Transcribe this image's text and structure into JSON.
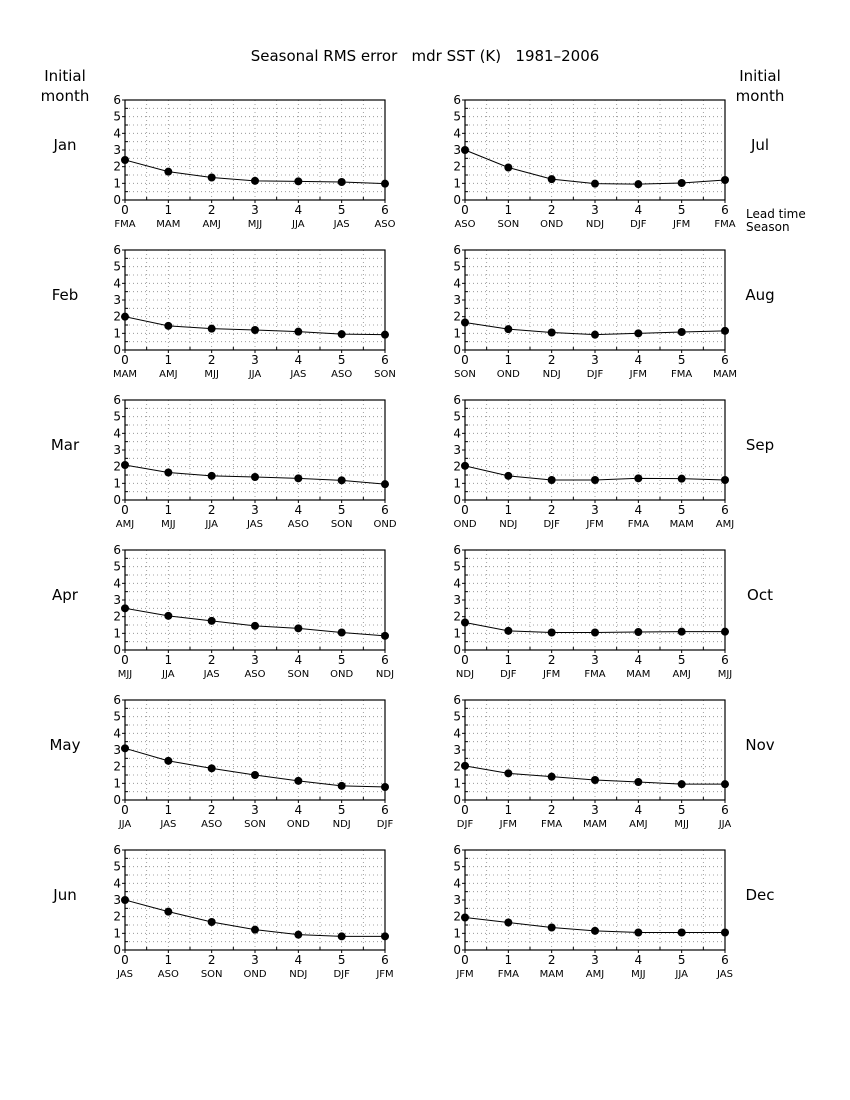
{
  "figure": {
    "title": "Seasonal RMS error   mdr SST (K)   1981–2006",
    "initial_month_label_line1": "Initial",
    "initial_month_label_line2": "month",
    "lead_time_label": "Lead time",
    "season_label": "Season"
  },
  "chart_data": [
    {
      "type": "line",
      "initial_month": "Jan",
      "x": [
        0,
        1,
        2,
        3,
        4,
        5,
        6
      ],
      "seasons": [
        "FMA",
        "MAM",
        "AMJ",
        "MJJ",
        "JJA",
        "JAS",
        "ASO"
      ],
      "values": [
        2.4,
        1.7,
        1.35,
        1.15,
        1.12,
        1.08,
        0.98
      ],
      "ylim": [
        0,
        6
      ],
      "xlim": [
        0,
        6
      ],
      "grid": true
    },
    {
      "type": "line",
      "initial_month": "Jul",
      "x": [
        0,
        1,
        2,
        3,
        4,
        5,
        6
      ],
      "seasons": [
        "ASO",
        "SON",
        "OND",
        "NDJ",
        "DJF",
        "JFM",
        "FMA"
      ],
      "values": [
        3.0,
        1.95,
        1.25,
        0.98,
        0.95,
        1.02,
        1.2
      ],
      "ylim": [
        0,
        6
      ],
      "xlim": [
        0,
        6
      ],
      "grid": true
    },
    {
      "type": "line",
      "initial_month": "Feb",
      "x": [
        0,
        1,
        2,
        3,
        4,
        5,
        6
      ],
      "seasons": [
        "MAM",
        "AMJ",
        "MJJ",
        "JJA",
        "JAS",
        "ASO",
        "SON"
      ],
      "values": [
        2.0,
        1.45,
        1.28,
        1.2,
        1.1,
        0.95,
        0.92
      ],
      "ylim": [
        0,
        6
      ],
      "xlim": [
        0,
        6
      ],
      "grid": true
    },
    {
      "type": "line",
      "initial_month": "Aug",
      "x": [
        0,
        1,
        2,
        3,
        4,
        5,
        6
      ],
      "seasons": [
        "SON",
        "OND",
        "NDJ",
        "DJF",
        "JFM",
        "FMA",
        "MAM"
      ],
      "values": [
        1.65,
        1.25,
        1.05,
        0.92,
        1.0,
        1.08,
        1.15
      ],
      "ylim": [
        0,
        6
      ],
      "xlim": [
        0,
        6
      ],
      "grid": true
    },
    {
      "type": "line",
      "initial_month": "Mar",
      "x": [
        0,
        1,
        2,
        3,
        4,
        5,
        6
      ],
      "seasons": [
        "AMJ",
        "MJJ",
        "JJA",
        "JAS",
        "ASO",
        "SON",
        "OND"
      ],
      "values": [
        2.1,
        1.65,
        1.45,
        1.38,
        1.3,
        1.18,
        0.95
      ],
      "ylim": [
        0,
        6
      ],
      "xlim": [
        0,
        6
      ],
      "grid": true
    },
    {
      "type": "line",
      "initial_month": "Sep",
      "x": [
        0,
        1,
        2,
        3,
        4,
        5,
        6
      ],
      "seasons": [
        "OND",
        "NDJ",
        "DJF",
        "JFM",
        "FMA",
        "MAM",
        "AMJ"
      ],
      "values": [
        2.05,
        1.45,
        1.2,
        1.2,
        1.3,
        1.28,
        1.2
      ],
      "ylim": [
        0,
        6
      ],
      "xlim": [
        0,
        6
      ],
      "grid": true
    },
    {
      "type": "line",
      "initial_month": "Apr",
      "x": [
        0,
        1,
        2,
        3,
        4,
        5,
        6
      ],
      "seasons": [
        "MJJ",
        "JJA",
        "JAS",
        "ASO",
        "SON",
        "OND",
        "NDJ"
      ],
      "values": [
        2.5,
        2.05,
        1.75,
        1.45,
        1.3,
        1.05,
        0.85
      ],
      "ylim": [
        0,
        6
      ],
      "xlim": [
        0,
        6
      ],
      "grid": true
    },
    {
      "type": "line",
      "initial_month": "Oct",
      "x": [
        0,
        1,
        2,
        3,
        4,
        5,
        6
      ],
      "seasons": [
        "NDJ",
        "DJF",
        "JFM",
        "FMA",
        "MAM",
        "AMJ",
        "MJJ"
      ],
      "values": [
        1.65,
        1.15,
        1.05,
        1.05,
        1.08,
        1.1,
        1.1
      ],
      "ylim": [
        0,
        6
      ],
      "xlim": [
        0,
        6
      ],
      "grid": true
    },
    {
      "type": "line",
      "initial_month": "May",
      "x": [
        0,
        1,
        2,
        3,
        4,
        5,
        6
      ],
      "seasons": [
        "JJA",
        "JAS",
        "ASO",
        "SON",
        "OND",
        "NDJ",
        "DJF"
      ],
      "values": [
        3.1,
        2.35,
        1.9,
        1.5,
        1.15,
        0.85,
        0.78
      ],
      "ylim": [
        0,
        6
      ],
      "xlim": [
        0,
        6
      ],
      "grid": true
    },
    {
      "type": "line",
      "initial_month": "Nov",
      "x": [
        0,
        1,
        2,
        3,
        4,
        5,
        6
      ],
      "seasons": [
        "DJF",
        "JFM",
        "FMA",
        "MAM",
        "AMJ",
        "MJJ",
        "JJA"
      ],
      "values": [
        2.05,
        1.6,
        1.4,
        1.2,
        1.08,
        0.95,
        0.95
      ],
      "ylim": [
        0,
        6
      ],
      "xlim": [
        0,
        6
      ],
      "grid": true
    },
    {
      "type": "line",
      "initial_month": "Jun",
      "x": [
        0,
        1,
        2,
        3,
        4,
        5,
        6
      ],
      "seasons": [
        "JAS",
        "ASO",
        "SON",
        "OND",
        "NDJ",
        "DJF",
        "JFM"
      ],
      "values": [
        3.0,
        2.3,
        1.68,
        1.22,
        0.92,
        0.82,
        0.82
      ],
      "ylim": [
        0,
        6
      ],
      "xlim": [
        0,
        6
      ],
      "grid": true
    },
    {
      "type": "line",
      "initial_month": "Dec",
      "x": [
        0,
        1,
        2,
        3,
        4,
        5,
        6
      ],
      "seasons": [
        "JFM",
        "FMA",
        "MAM",
        "AMJ",
        "MJJ",
        "JJA",
        "JAS"
      ],
      "values": [
        1.95,
        1.65,
        1.35,
        1.15,
        1.05,
        1.05,
        1.05
      ],
      "ylim": [
        0,
        6
      ],
      "xlim": [
        0,
        6
      ],
      "grid": true
    }
  ]
}
